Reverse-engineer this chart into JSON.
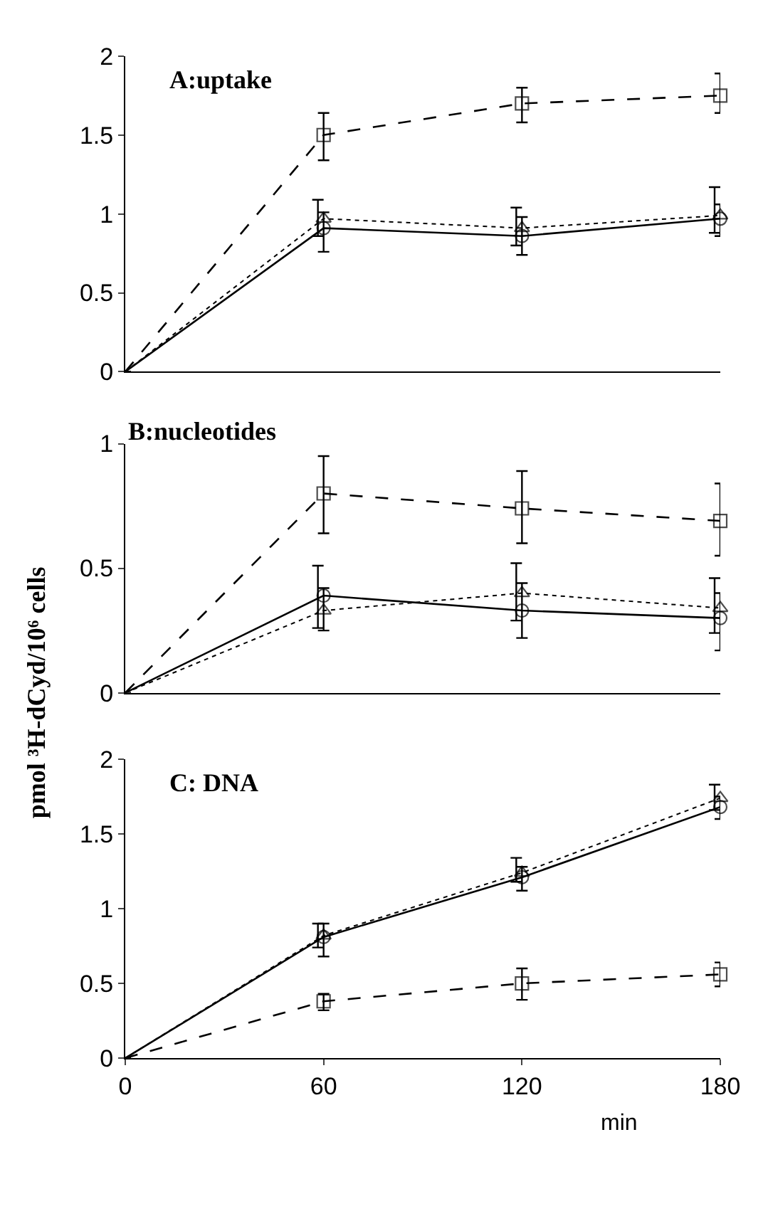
{
  "chart_data": [
    {
      "type": "line",
      "title": "A:uptake",
      "x": [
        0,
        60,
        120,
        180
      ],
      "xlim": [
        0,
        180
      ],
      "ylim": [
        0,
        2
      ],
      "yticks": [
        0,
        0.5,
        1,
        1.5,
        2
      ],
      "tick_labels": "y",
      "series": [
        {
          "color": "#000000",
          "marker": "square",
          "line_style": "dashed",
          "values": [
            0,
            1.5,
            1.7,
            1.75
          ],
          "errors": [
            null,
            [
              1.34,
              1.64
            ],
            [
              1.58,
              1.8
            ],
            [
              1.64,
              1.89
            ]
          ]
        },
        {
          "color": "#000000",
          "marker": "circle",
          "line_style": "solid",
          "values": [
            0,
            0.91,
            0.86,
            0.97
          ],
          "errors": [
            null,
            [
              0.76,
              1.01
            ],
            [
              0.74,
              0.98
            ],
            [
              0.86,
              1.06
            ]
          ]
        },
        {
          "color": "#000000",
          "marker": "triangle",
          "line_style": "dotted",
          "values": [
            0,
            0.97,
            0.91,
            0.99
          ],
          "errors": [
            null,
            [
              0.86,
              1.09
            ],
            [
              0.8,
              1.04
            ],
            [
              0.88,
              1.17
            ]
          ]
        }
      ]
    },
    {
      "type": "line",
      "title": "B:nucleotides",
      "ylabel": "pmol ³H-dCyd/10⁶ cells",
      "x": [
        0,
        60,
        120,
        180
      ],
      "xlim": [
        0,
        180
      ],
      "ylim": [
        0,
        1
      ],
      "yticks": [
        0,
        0.5,
        1
      ],
      "tick_labels": "y",
      "series": [
        {
          "color": "#000000",
          "marker": "square",
          "line_style": "dashed",
          "values": [
            0,
            0.8,
            0.74,
            0.69
          ],
          "errors": [
            null,
            [
              0.64,
              0.95
            ],
            [
              0.6,
              0.89
            ],
            [
              0.55,
              0.84
            ]
          ]
        },
        {
          "color": "#000000",
          "marker": "circle",
          "line_style": "solid",
          "values": [
            0,
            0.39,
            0.33,
            0.3
          ],
          "errors": [
            null,
            [
              0.25,
              0.42
            ],
            [
              0.22,
              0.44
            ],
            [
              0.17,
              0.4
            ]
          ]
        },
        {
          "color": "#000000",
          "marker": "triangle",
          "line_style": "dotted",
          "values": [
            0,
            0.33,
            0.4,
            0.34
          ],
          "errors": [
            null,
            [
              0.26,
              0.51
            ],
            [
              0.29,
              0.52
            ],
            [
              0.24,
              0.46
            ]
          ]
        }
      ]
    },
    {
      "type": "line",
      "title": "C: DNA",
      "xlabel": "min",
      "x": [
        0,
        60,
        120,
        180
      ],
      "xlim": [
        0,
        180
      ],
      "xticks": [
        0,
        60,
        120,
        180
      ],
      "ylim": [
        0,
        2
      ],
      "yticks": [
        0,
        0.5,
        1,
        1.5,
        2
      ],
      "series": [
        {
          "color": "#000000",
          "marker": "square",
          "line_style": "dashed",
          "values": [
            0,
            0.38,
            0.5,
            0.56
          ],
          "errors": [
            null,
            [
              0.32,
              0.43
            ],
            [
              0.39,
              0.6
            ],
            [
              0.48,
              0.64
            ]
          ]
        },
        {
          "color": "#000000",
          "marker": "circle",
          "line_style": "solid",
          "values": [
            0,
            0.81,
            1.21,
            1.68
          ],
          "errors": [
            null,
            [
              0.68,
              0.9
            ],
            [
              1.12,
              1.28
            ],
            [
              1.6,
              1.75
            ]
          ]
        },
        {
          "color": "#000000",
          "marker": "triangle",
          "line_style": "dotted",
          "values": [
            0,
            0.82,
            1.24,
            1.74
          ],
          "errors": [
            null,
            [
              0.74,
              0.9
            ],
            [
              1.18,
              1.34
            ],
            [
              1.66,
              1.83
            ]
          ]
        }
      ]
    }
  ]
}
